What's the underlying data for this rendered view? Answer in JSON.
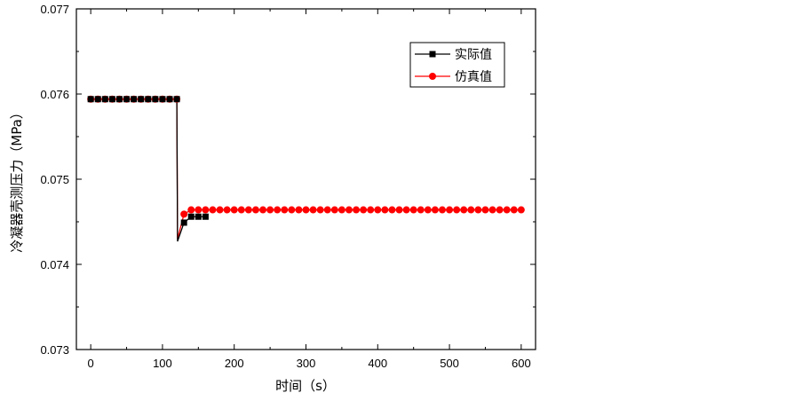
{
  "chart_data": {
    "type": "line",
    "xlabel": "时间（s）",
    "ylabel": "冷凝器壳测压力（MPa）",
    "xlim": [
      -20,
      620
    ],
    "ylim": [
      0.073,
      0.077
    ],
    "xticks": [
      0,
      100,
      200,
      300,
      400,
      500,
      600
    ],
    "xtick_labels": [
      "0",
      "100",
      "200",
      "300",
      "400",
      "500",
      "600"
    ],
    "yticks": [
      0.073,
      0.074,
      0.075,
      0.076,
      0.077
    ],
    "ytick_labels": [
      "0.073",
      "0.074",
      "0.075",
      "0.076",
      "0.077"
    ],
    "legend_position": "top-right",
    "grid": false,
    "series": [
      {
        "name": "实际值",
        "color": "#000000",
        "marker": "square",
        "line": {
          "x": [
            0,
            120,
            121,
            130,
            140,
            150,
            160
          ],
          "y": [
            0.07594,
            0.07594,
            0.07427,
            0.07449,
            0.07456,
            0.07456,
            0.07456
          ]
        },
        "markers": {
          "x": [
            0,
            10,
            20,
            30,
            40,
            50,
            60,
            70,
            80,
            90,
            100,
            110,
            120,
            130,
            140,
            150,
            160
          ],
          "y": [
            0.07594,
            0.07594,
            0.07594,
            0.07594,
            0.07594,
            0.07594,
            0.07594,
            0.07594,
            0.07594,
            0.07594,
            0.07594,
            0.07594,
            0.07594,
            0.07449,
            0.07456,
            0.07456,
            0.07456
          ]
        }
      },
      {
        "name": "仿真值",
        "color": "#ff0000",
        "marker": "circle",
        "line": {
          "x": [
            0,
            120,
            121,
            130,
            140,
            600
          ],
          "y": [
            0.07594,
            0.07594,
            0.0743,
            0.07459,
            0.07464,
            0.07464
          ]
        },
        "markers": {
          "x": [
            0,
            10,
            20,
            30,
            40,
            50,
            60,
            70,
            80,
            90,
            100,
            110,
            120,
            130,
            140,
            150,
            160,
            170,
            180,
            190,
            200,
            210,
            220,
            230,
            240,
            250,
            260,
            270,
            280,
            290,
            300,
            310,
            320,
            330,
            340,
            350,
            360,
            370,
            380,
            390,
            400,
            410,
            420,
            430,
            440,
            450,
            460,
            470,
            480,
            490,
            500,
            510,
            520,
            530,
            540,
            550,
            560,
            570,
            580,
            590,
            600
          ],
          "y": [
            0.07594,
            0.07594,
            0.07594,
            0.07594,
            0.07594,
            0.07594,
            0.07594,
            0.07594,
            0.07594,
            0.07594,
            0.07594,
            0.07594,
            0.07594,
            0.07459,
            0.07464,
            0.07464,
            0.07464,
            0.07464,
            0.07464,
            0.07464,
            0.07464,
            0.07464,
            0.07464,
            0.07464,
            0.07464,
            0.07464,
            0.07464,
            0.07464,
            0.07464,
            0.07464,
            0.07464,
            0.07464,
            0.07464,
            0.07464,
            0.07464,
            0.07464,
            0.07464,
            0.07464,
            0.07464,
            0.07464,
            0.07464,
            0.07464,
            0.07464,
            0.07464,
            0.07464,
            0.07464,
            0.07464,
            0.07464,
            0.07464,
            0.07464,
            0.07464,
            0.07464,
            0.07464,
            0.07464,
            0.07464,
            0.07464,
            0.07464,
            0.07464,
            0.07464,
            0.07464,
            0.07464
          ]
        }
      }
    ]
  }
}
